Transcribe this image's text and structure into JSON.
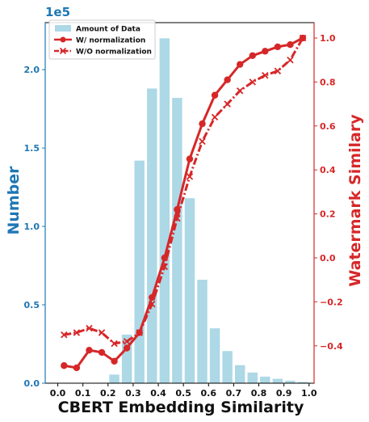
{
  "chart_data": {
    "type": "bar",
    "xlabel": "CBERT Embedding Similarity",
    "ylabel_left": "Number",
    "ylabel_right": "Watermark Similary",
    "left_axis_multiplier": "1e5",
    "x_range": [
      -0.05,
      1.02
    ],
    "left_ylim": [
      0,
      2.3
    ],
    "right_ylim": [
      -0.57,
      1.07
    ],
    "x_ticks": [
      "0.0",
      "0.1",
      "0.2",
      "0.3",
      "0.4",
      "0.5",
      "0.6",
      "0.7",
      "0.8",
      "0.9",
      "1.0"
    ],
    "left_ticks": [
      "0.0",
      "0.5",
      "1.0",
      "1.5",
      "2.0"
    ],
    "right_ticks": [
      "−0.4",
      "−0.2",
      "0.0",
      "0.2",
      "0.4",
      "0.6",
      "0.8",
      "1.0"
    ],
    "legend_position": "top-left",
    "grid": false,
    "bars": {
      "name": "Amount of Data",
      "color": "#add8e6",
      "x": [
        0.025,
        0.075,
        0.125,
        0.175,
        0.225,
        0.275,
        0.325,
        0.375,
        0.425,
        0.475,
        0.525,
        0.575,
        0.625,
        0.675,
        0.725,
        0.775,
        0.825,
        0.875,
        0.925,
        0.975
      ],
      "values": [
        0.0,
        0.0,
        0.0,
        0.003,
        0.055,
        0.31,
        1.42,
        1.88,
        2.2,
        1.82,
        1.18,
        0.66,
        0.35,
        0.205,
        0.115,
        0.068,
        0.042,
        0.028,
        0.016,
        0.008
      ]
    },
    "series": [
      {
        "name": "W/ normalization",
        "color": "#d62728",
        "style": "solid",
        "marker": "circle",
        "x": [
          0.025,
          0.075,
          0.125,
          0.175,
          0.225,
          0.275,
          0.325,
          0.375,
          0.425,
          0.475,
          0.525,
          0.575,
          0.625,
          0.675,
          0.725,
          0.775,
          0.825,
          0.875,
          0.925,
          0.975
        ],
        "y": [
          -0.49,
          -0.5,
          -0.42,
          -0.43,
          -0.47,
          -0.41,
          -0.34,
          -0.18,
          0.0,
          0.22,
          0.45,
          0.61,
          0.74,
          0.81,
          0.88,
          0.92,
          0.94,
          0.96,
          0.97,
          1.0
        ]
      },
      {
        "name": "W/O normalization",
        "color": "#d62728",
        "style": "dashdot",
        "marker": "x",
        "x": [
          0.025,
          0.075,
          0.125,
          0.175,
          0.225,
          0.275,
          0.325,
          0.375,
          0.425,
          0.475,
          0.525,
          0.575,
          0.625,
          0.675,
          0.725,
          0.775,
          0.825,
          0.875,
          0.925,
          0.975
        ],
        "y": [
          -0.35,
          -0.34,
          -0.32,
          -0.34,
          -0.39,
          -0.38,
          -0.34,
          -0.21,
          -0.04,
          0.18,
          0.37,
          0.53,
          0.64,
          0.7,
          0.76,
          0.8,
          0.83,
          0.85,
          0.9,
          1.0
        ]
      }
    ]
  }
}
